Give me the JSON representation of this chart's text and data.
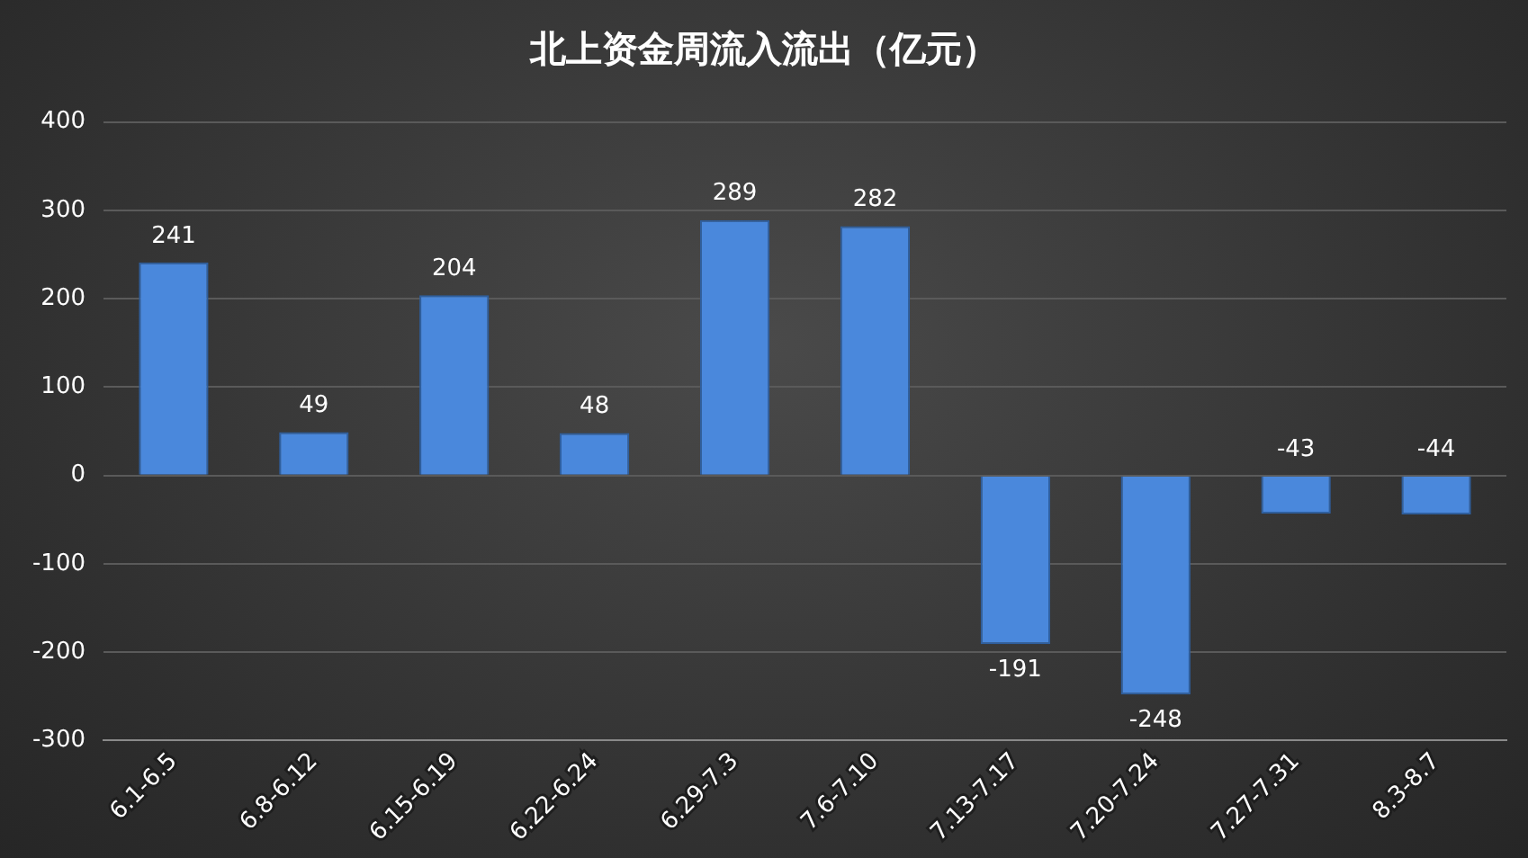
{
  "chart_data": {
    "type": "bar",
    "title": "北上资金周流入流出（亿元）",
    "categories": [
      "6.1-6.5",
      "6.8-6.12",
      "6.15-6.19",
      "6.22-6.24",
      "6.29-7.3",
      "7.6-7.10",
      "7.13-7.17",
      "7.20-7.24",
      "7.27-7.31",
      "8.3-8.7"
    ],
    "values": [
      241,
      49,
      204,
      48,
      289,
      282,
      -191,
      -248,
      -43,
      -44
    ],
    "color": "#4a88dc",
    "ylim": [
      -300,
      400
    ],
    "yticks": [
      -300,
      -200,
      -100,
      0,
      100,
      200,
      300,
      400
    ],
    "grid": "y",
    "data_labels": true,
    "legend": false
  }
}
